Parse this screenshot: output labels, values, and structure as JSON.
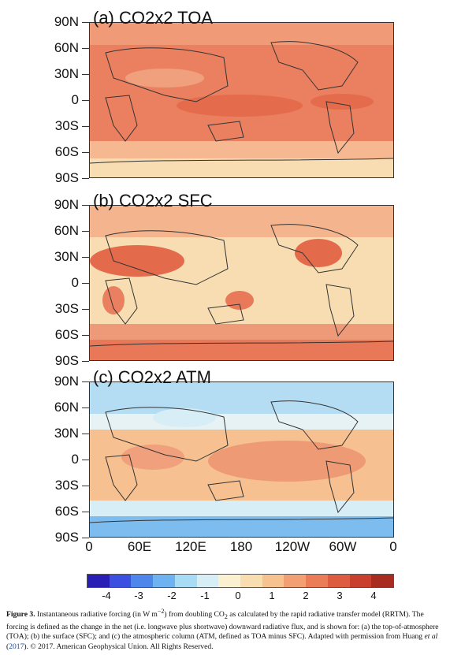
{
  "panels": [
    {
      "title": "(a) CO2x2 TOA"
    },
    {
      "title": "(b) CO2x2 SFC"
    },
    {
      "title": "(c) CO2x2 ATM"
    }
  ],
  "lat_labels": [
    "90N",
    "60N",
    "30N",
    "0",
    "30S",
    "60S",
    "90S"
  ],
  "lon_labels": [
    "0",
    "60E",
    "120E",
    "180",
    "120W",
    "60W",
    "0"
  ],
  "colorbar": {
    "labels": [
      "-4",
      "-3",
      "-2",
      "-1",
      "0",
      "1",
      "2",
      "3",
      "4"
    ],
    "colors": [
      "#2a1fb4",
      "#3b4fe0",
      "#4f86ec",
      "#6fb2f2",
      "#a8dcf5",
      "#d8eef6",
      "#fbf0cf",
      "#f8ddb0",
      "#f6c290",
      "#f2a073",
      "#ea7d58",
      "#dd5b40",
      "#c9402f",
      "#a82c1f"
    ]
  },
  "caption": {
    "figure_label": "Figure 3.",
    "text_1": " Instantaneous radiative forcing (in W m",
    "sup": "−2",
    "text_2": ") from doubling CO",
    "sub": "2",
    "text_3": " as calculated by the rapid radiative transfer model (RRTM). The forcing is defined as the change in the net (i.e. longwave plus shortwave) downward radiative flux, and is shown for: (a) the top-of-atmosphere (TOA); (b) the surface (SFC); and (c) the atmospheric column (ATM, defined as TOA minus SFC). Adapted with permission from Huang ",
    "etal": "et al",
    "text_4": " (",
    "year_link": "2017",
    "text_5": "). © 2017. American Geophysical Union. All Rights Reserved."
  }
}
